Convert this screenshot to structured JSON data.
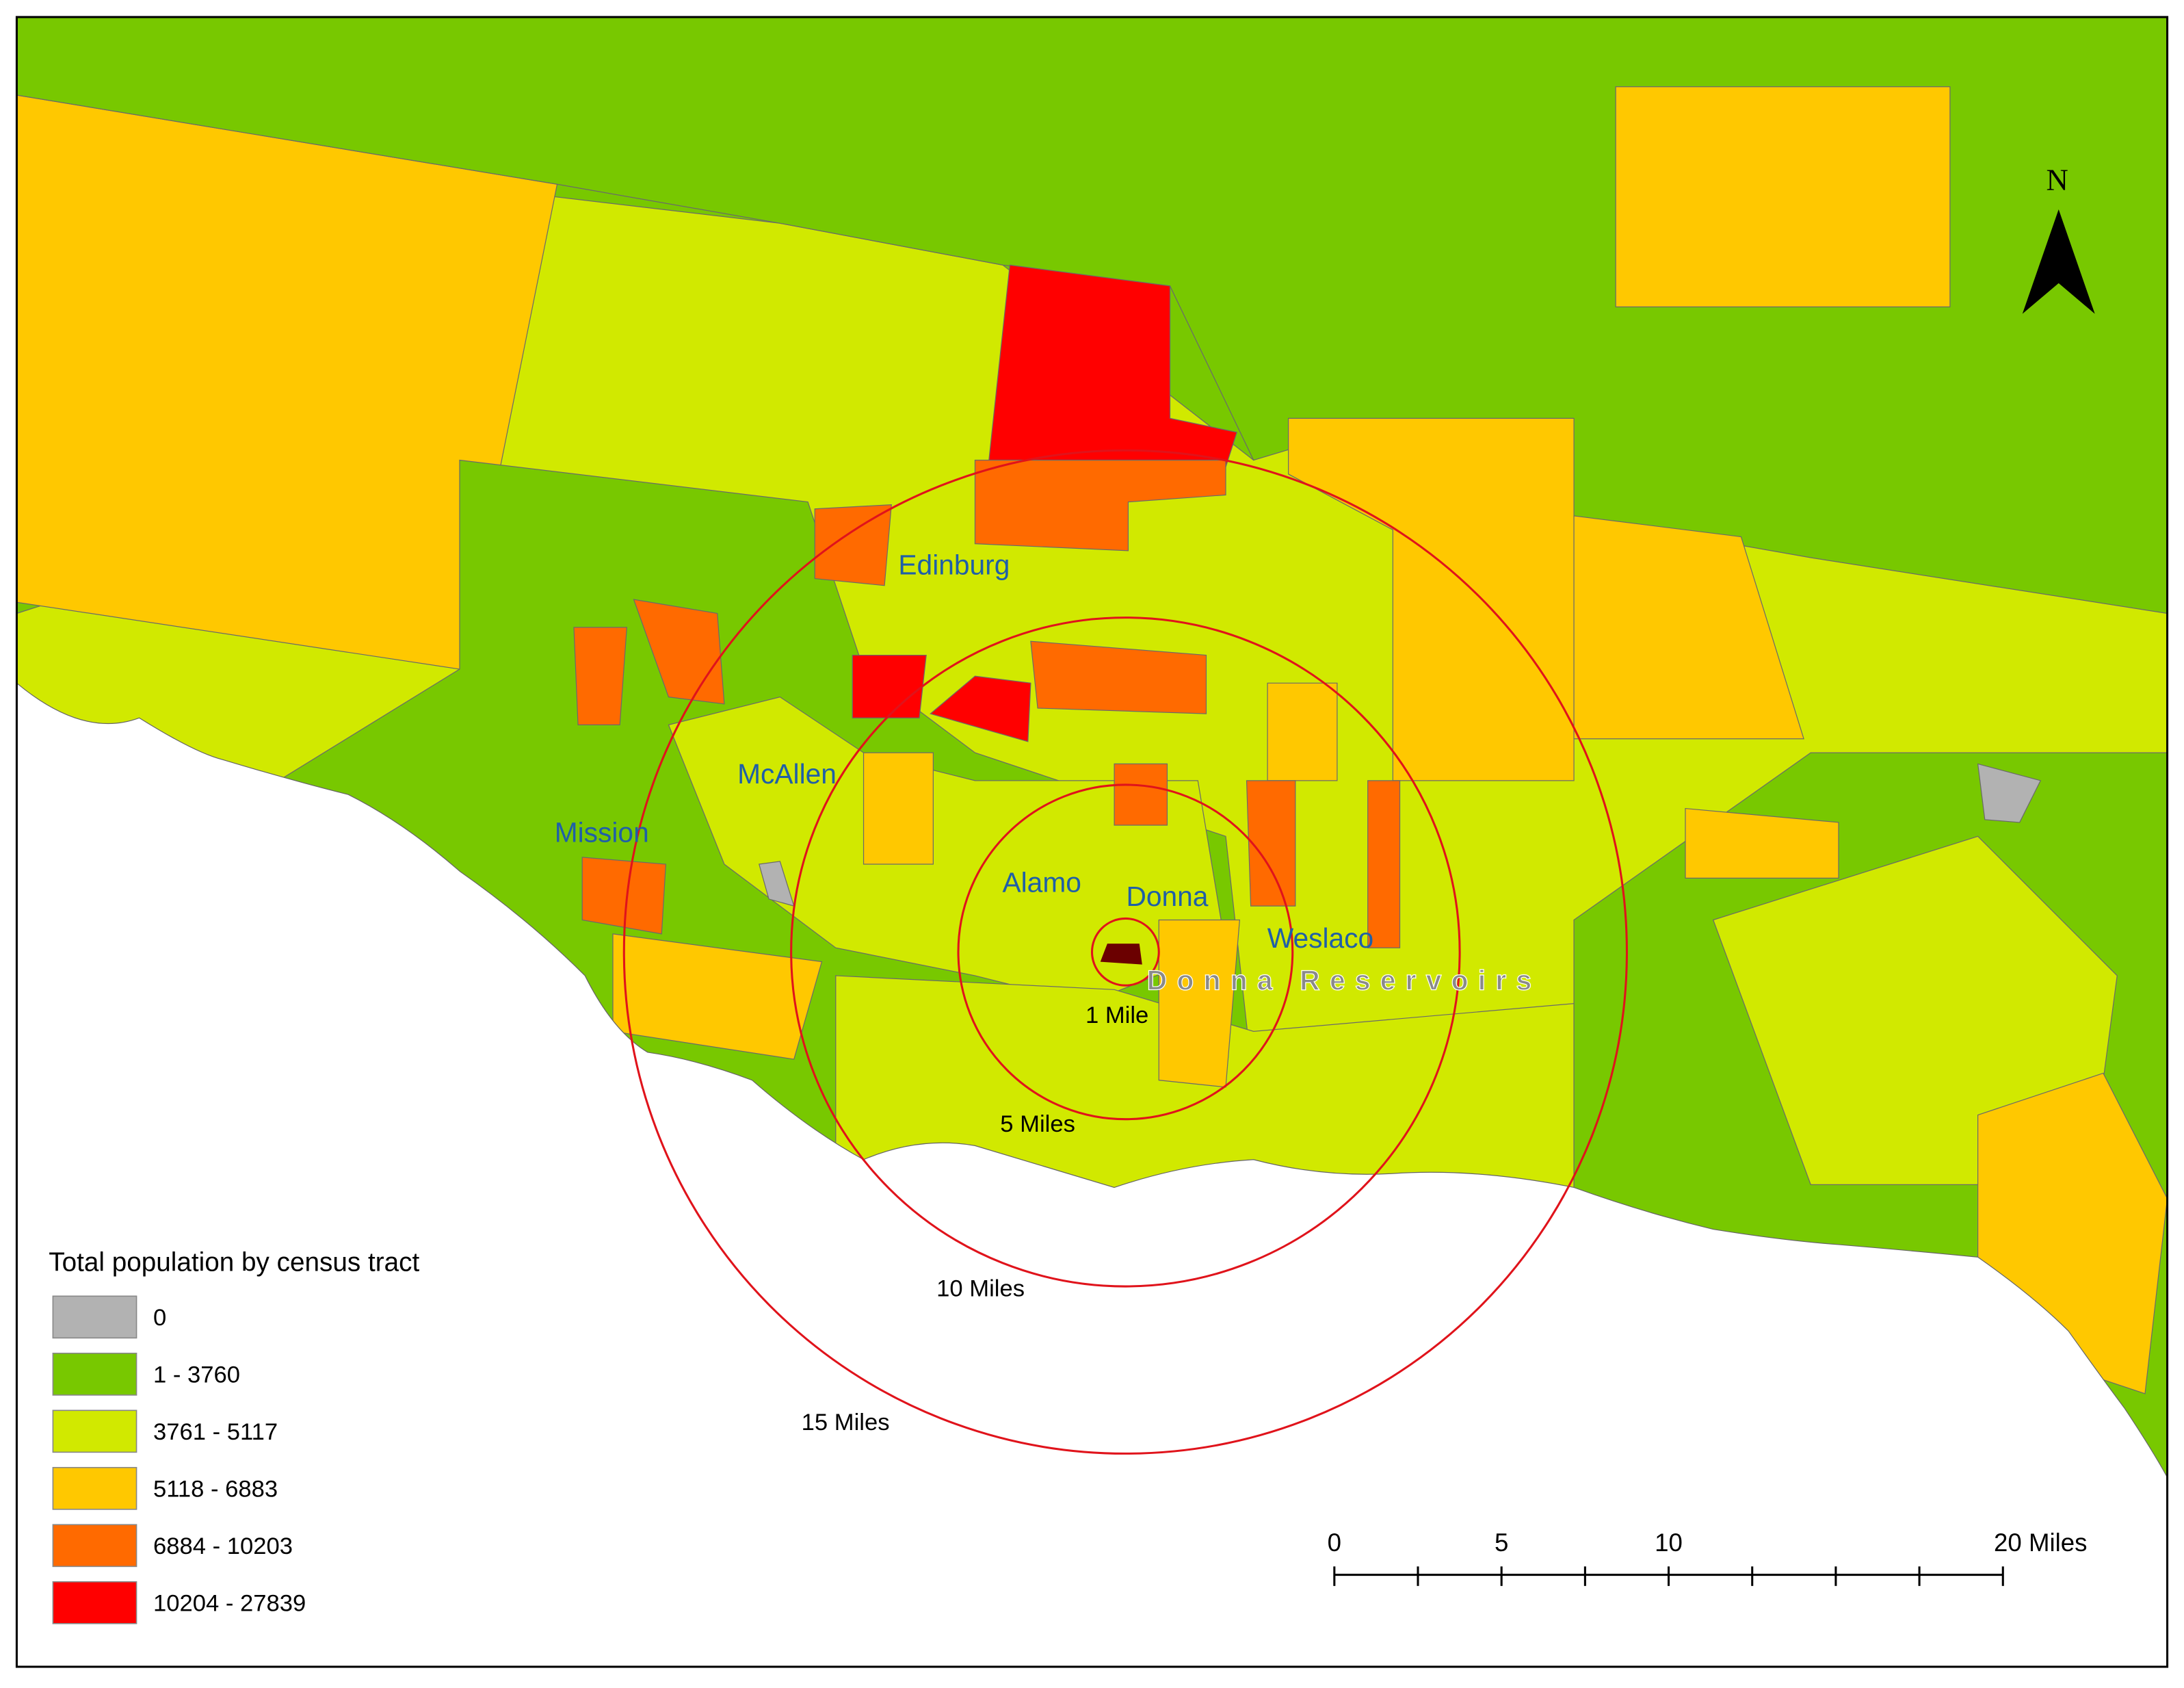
{
  "north_label": "N",
  "places": [
    "Edinburg",
    "McAllen",
    "Mission",
    "Alamo",
    "Donna",
    "Weslaco"
  ],
  "site": "Donna Reservoirs",
  "buffers": [
    "1 Mile",
    "5 Miles",
    "10 Miles",
    "15 Miles"
  ],
  "legend": {
    "title": "Total population by census tract",
    "items": [
      {
        "label": "0",
        "color": "#b2b2b2"
      },
      {
        "label": "1 - 3760",
        "color": "#78c800"
      },
      {
        "label": "3761 - 5117",
        "color": "#d1e900"
      },
      {
        "label": "5118 - 6883",
        "color": "#ffc800"
      },
      {
        "label": "6884 - 10203",
        "color": "#ff6a00"
      },
      {
        "label": "10204 - 27839",
        "color": "#ff0000"
      }
    ]
  },
  "scale_bar": {
    "labels": [
      "0",
      "5",
      "10",
      "20 Miles"
    ]
  }
}
